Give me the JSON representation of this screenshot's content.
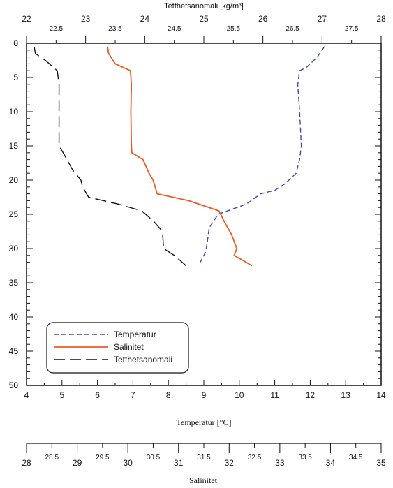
{
  "chart_data": {
    "type": "line",
    "y_axis": {
      "label": "",
      "range": [
        50,
        0
      ],
      "major_ticks": [
        0,
        5,
        10,
        15,
        20,
        25,
        30,
        35,
        40,
        45,
        50
      ],
      "minor_step": 1
    },
    "axes": {
      "temperature": {
        "label": "Temperatur [°C]",
        "range": [
          4,
          14
        ],
        "major_ticks": [
          4,
          5,
          6,
          7,
          8,
          9,
          10,
          11,
          12,
          13,
          14
        ]
      },
      "density": {
        "label": "Tetthetsanomali [kg/m³]",
        "range": [
          22,
          28
        ],
        "major_ticks": [
          22,
          23,
          24,
          25,
          26,
          27,
          28
        ],
        "minor_ticks": [
          22.5,
          23.5,
          24.5,
          25.5,
          26.5,
          27.5
        ]
      },
      "salinity": {
        "label": "Salinitet",
        "range": [
          28,
          35
        ],
        "major_ticks": [
          28,
          29,
          30,
          31,
          32,
          33,
          34,
          35
        ],
        "minor_ticks": [
          28.5,
          29.5,
          30.5,
          31.5,
          32.5,
          33.5,
          34.5
        ]
      }
    },
    "series": [
      {
        "name": "Temperatur",
        "axis": "temperature",
        "color": "#4444bb",
        "dash": "dashed",
        "x": [
          12.4,
          12.2,
          11.9,
          11.7,
          11.65,
          11.7,
          11.75,
          11.7,
          11.6,
          11.3,
          11.0,
          10.6,
          10.2,
          9.4,
          9.15,
          9.1,
          9.05,
          8.9
        ],
        "y": [
          0.5,
          2,
          3.5,
          4,
          6,
          10,
          15,
          17,
          19,
          20.5,
          21.5,
          22,
          23.5,
          25,
          27,
          29,
          30.5,
          32
        ]
      },
      {
        "name": "Salinitet",
        "axis": "salinity",
        "color": "#f05a22",
        "dash": "solid",
        "x": [
          29.6,
          29.62,
          29.75,
          30.05,
          30.07,
          30.06,
          30.07,
          30.08,
          30.3,
          30.42,
          30.5,
          30.58,
          31.2,
          31.8,
          31.9,
          32.05,
          32.15,
          32.1,
          32.45
        ],
        "y": [
          0.5,
          1.5,
          3,
          4,
          6,
          10,
          15,
          16,
          17,
          19,
          20,
          22,
          23,
          24.5,
          26,
          28,
          30,
          31,
          32.5
        ]
      },
      {
        "name": "Tetthetsanomali",
        "axis": "density",
        "color": "#111111",
        "dash": "longdash",
        "x": [
          22.13,
          22.15,
          22.32,
          22.52,
          22.55,
          22.55,
          22.55,
          22.62,
          22.78,
          22.92,
          22.95,
          23.05,
          23.55,
          23.95,
          24.15,
          24.3,
          24.32,
          24.5,
          24.7
        ],
        "y": [
          0.5,
          1.5,
          2.5,
          4,
          6,
          10,
          15,
          16,
          18.5,
          20,
          21,
          22.5,
          23.5,
          24.5,
          26,
          27.5,
          30,
          31,
          32.5
        ]
      }
    ],
    "legend": {
      "placement": "bottom-left",
      "entries": [
        "Temperatur",
        "Salinitet",
        "Tetthetsanomali"
      ]
    }
  }
}
